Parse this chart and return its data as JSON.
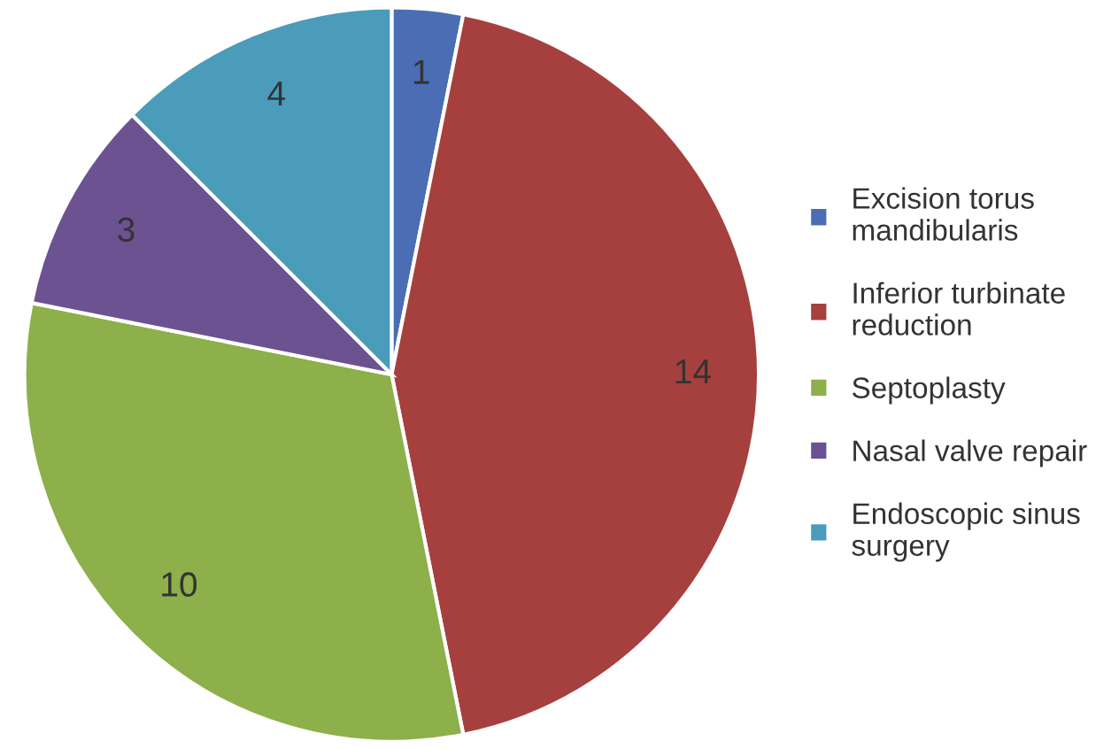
{
  "chart_data": {
    "type": "pie",
    "categories": [
      "Excision torus mandibularis",
      "Inferior turbinate reduction",
      "Septoplasty",
      "Nasal valve repair",
      "Endoscopic sinus surgery"
    ],
    "values": [
      1,
      14,
      10,
      3,
      4
    ],
    "colors": [
      "#4a6db3",
      "#a6403e",
      "#8db04a",
      "#6c5290",
      "#4b9bbb"
    ],
    "data_labels": true,
    "legend": "right"
  }
}
